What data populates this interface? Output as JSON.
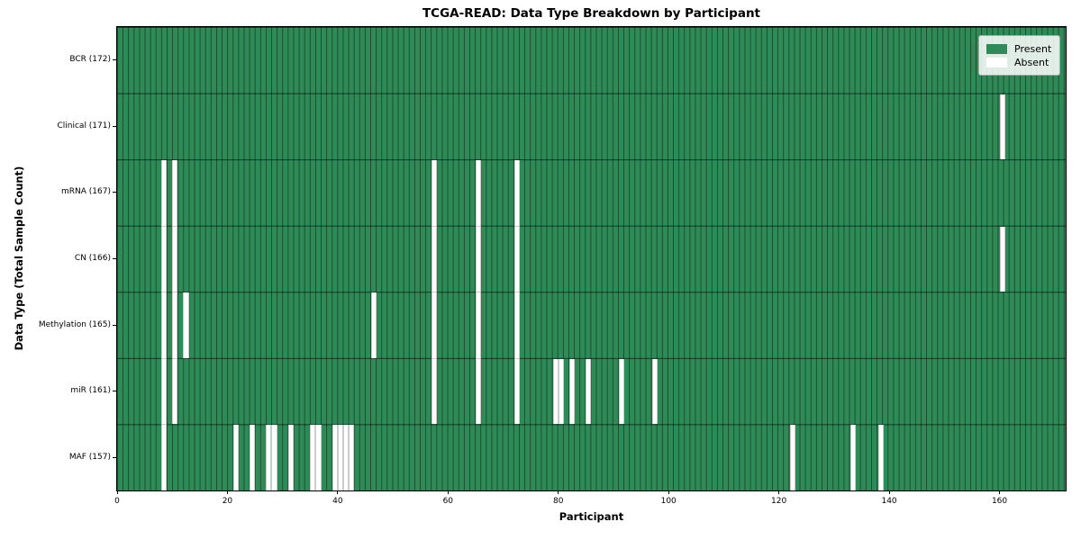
{
  "chart_data": {
    "type": "heatmap",
    "title": "TCGA-READ: Data Type Breakdown by Participant",
    "xlabel": "Participant",
    "ylabel": "Data Type (Total Sample Count)",
    "x_min": 0,
    "x_max": 172,
    "x_ticks": [
      0,
      20,
      40,
      60,
      80,
      100,
      120,
      140,
      160
    ],
    "n_participants": 172,
    "present_color": "#2e8b57",
    "absent_color": "#ffffff",
    "grid": "cell-edges",
    "legend_position": "upper right",
    "legend": [
      {
        "label": "Present",
        "color": "#2e8b57"
      },
      {
        "label": "Absent",
        "color": "#ffffff"
      }
    ],
    "rows": [
      {
        "label": "BCR (172)",
        "data_type": "BCR",
        "total_sample_count": 172,
        "absent_participants": []
      },
      {
        "label": "Clinical (171)",
        "data_type": "Clinical",
        "total_sample_count": 171,
        "absent_participants": [
          160
        ]
      },
      {
        "label": "mRNA (167)",
        "data_type": "mRNA",
        "total_sample_count": 167,
        "absent_participants": [
          8,
          10,
          57,
          65,
          72
        ]
      },
      {
        "label": "CN (166)",
        "data_type": "CN",
        "total_sample_count": 166,
        "absent_participants": [
          8,
          10,
          57,
          65,
          72,
          160
        ]
      },
      {
        "label": "Methylation (165)",
        "data_type": "Methylation",
        "total_sample_count": 165,
        "absent_participants": [
          8,
          10,
          12,
          46,
          57,
          65,
          72
        ]
      },
      {
        "label": "miR (161)",
        "data_type": "miR",
        "total_sample_count": 161,
        "absent_participants": [
          8,
          10,
          57,
          65,
          72,
          79,
          80,
          82,
          85,
          91,
          97
        ]
      },
      {
        "label": "MAF (157)",
        "data_type": "MAF",
        "total_sample_count": 157,
        "absent_participants": [
          8,
          21,
          24,
          27,
          28,
          31,
          35,
          36,
          39,
          40,
          41,
          42,
          122,
          133,
          138
        ]
      }
    ]
  }
}
